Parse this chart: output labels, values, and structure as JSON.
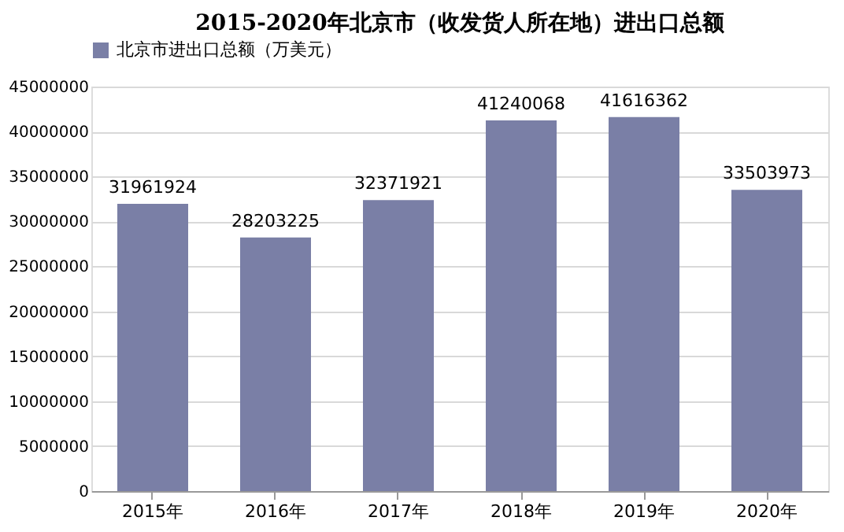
{
  "chart_data": {
    "type": "bar",
    "title": "2015-2020年北京市（收发货人所在地）进出口总额",
    "categories": [
      "2015年",
      "2016年",
      "2017年",
      "2018年",
      "2019年",
      "2020年"
    ],
    "series": [
      {
        "name": "北京市进出口总额（万美元）",
        "color": "#7a7fa6",
        "values": [
          31961924,
          28203225,
          32371921,
          41240068,
          41616362,
          33503973
        ]
      }
    ],
    "ylim": [
      0,
      45000000
    ],
    "yticks": [
      0,
      5000000,
      10000000,
      15000000,
      20000000,
      25000000,
      30000000,
      35000000,
      40000000,
      45000000
    ],
    "grid": "y",
    "legend": "top",
    "data_labels": true
  }
}
